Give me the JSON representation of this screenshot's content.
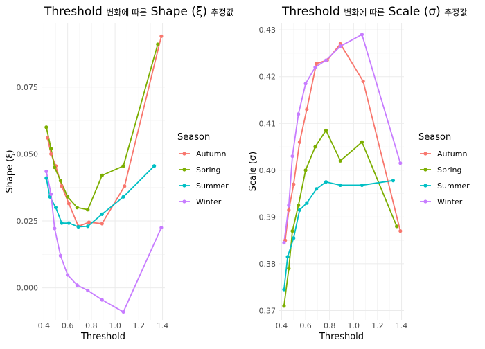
{
  "colors": {
    "Autumn": "#F8766D",
    "Spring": "#7CAE00",
    "Summer": "#00BFC4",
    "Winter": "#C77CFF",
    "grid": "#ebebeb"
  },
  "chart_data": [
    {
      "type": "line",
      "title": "Threshold 변화에 따른 Shape (ξ) 추정값",
      "title_parts": [
        "Threshold ",
        "변화에 따른",
        " Shape (ξ) ",
        "추정값"
      ],
      "xlabel": "Threshold",
      "ylabel": "Shape (ξ)",
      "xlim": [
        0.38,
        1.42
      ],
      "ylim": [
        -0.012,
        0.099
      ],
      "x_ticks": [
        0.4,
        0.6,
        0.8,
        1.0,
        1.2,
        1.4
      ],
      "x_tick_labels": [
        "0.4",
        "0.6",
        "0.8",
        "1.0",
        "1.2",
        "1.4"
      ],
      "y_ticks": [
        0.0,
        0.025,
        0.05,
        0.075
      ],
      "y_tick_labels": [
        "0.000",
        "0.025",
        "0.050",
        "0.075"
      ],
      "legend": {
        "title": "Season",
        "entries": [
          "Autumn",
          "Spring",
          "Summer",
          "Winter"
        ],
        "position": "right"
      },
      "grid": true,
      "series": [
        {
          "name": "Autumn",
          "x": [
            0.43,
            0.46,
            0.5,
            0.55,
            0.61,
            0.69,
            0.78,
            0.89,
            1.08,
            1.39
          ],
          "y": [
            0.056,
            0.05,
            0.0455,
            0.038,
            0.0315,
            0.023,
            0.0245,
            0.024,
            0.038,
            0.094
          ]
        },
        {
          "name": "Spring",
          "x": [
            0.42,
            0.46,
            0.49,
            0.54,
            0.6,
            0.68,
            0.77,
            0.89,
            1.07,
            1.36
          ],
          "y": [
            0.06,
            0.052,
            0.045,
            0.04,
            0.034,
            0.03,
            0.0292,
            0.042,
            0.0455,
            0.091
          ]
        },
        {
          "name": "Summer",
          "x": [
            0.42,
            0.45,
            0.5,
            0.55,
            0.61,
            0.69,
            0.77,
            0.89,
            1.07,
            1.33
          ],
          "y": [
            0.041,
            0.034,
            0.03,
            0.0242,
            0.0242,
            0.0228,
            0.023,
            0.0275,
            0.034,
            0.0455
          ]
        },
        {
          "name": "Winter",
          "x": [
            0.42,
            0.46,
            0.49,
            0.54,
            0.6,
            0.68,
            0.77,
            0.89,
            1.07,
            1.39
          ],
          "y": [
            0.0435,
            0.035,
            0.0222,
            0.012,
            0.0048,
            0.001,
            -0.001,
            -0.0045,
            -0.009,
            0.0225
          ]
        }
      ]
    },
    {
      "type": "line",
      "title": "Threshold 변화에 따른 Scale (σ) 추정값",
      "title_parts": [
        "Threshold ",
        "변화에 따른",
        " Scale (σ) ",
        "추정값"
      ],
      "xlabel": "Threshold",
      "ylabel": "Scale (σ)",
      "xlim": [
        0.38,
        1.42
      ],
      "ylim": [
        0.368,
        0.4315
      ],
      "x_ticks": [
        0.4,
        0.6,
        0.8,
        1.0,
        1.2,
        1.4
      ],
      "x_tick_labels": [
        "0.4",
        "0.6",
        "0.8",
        "1.0",
        "1.2",
        "1.4"
      ],
      "y_ticks": [
        0.37,
        0.38,
        0.39,
        0.4,
        0.41,
        0.42,
        0.43
      ],
      "y_tick_labels": [
        "0.37",
        "0.38",
        "0.39",
        "0.40",
        "0.41",
        "0.42",
        "0.43"
      ],
      "legend": {
        "title": "Season",
        "entries": [
          "Autumn",
          "Spring",
          "Summer",
          "Winter"
        ],
        "position": "right"
      },
      "grid": true,
      "series": [
        {
          "name": "Autumn",
          "x": [
            0.43,
            0.46,
            0.5,
            0.55,
            0.61,
            0.69,
            0.78,
            0.89,
            1.08,
            1.39
          ],
          "y": [
            0.385,
            0.3915,
            0.397,
            0.406,
            0.413,
            0.4228,
            0.4235,
            0.427,
            0.419,
            0.387
          ]
        },
        {
          "name": "Spring",
          "x": [
            0.42,
            0.46,
            0.49,
            0.54,
            0.6,
            0.68,
            0.77,
            0.89,
            1.07,
            1.36
          ],
          "y": [
            0.371,
            0.379,
            0.387,
            0.3925,
            0.4,
            0.405,
            0.4085,
            0.402,
            0.406,
            0.388
          ]
        },
        {
          "name": "Summer",
          "x": [
            0.42,
            0.45,
            0.5,
            0.55,
            0.61,
            0.69,
            0.77,
            0.89,
            1.07,
            1.33
          ],
          "y": [
            0.3745,
            0.3815,
            0.3855,
            0.3915,
            0.393,
            0.396,
            0.3975,
            0.3968,
            0.3968,
            0.3978
          ]
        },
        {
          "name": "Winter",
          "x": [
            0.42,
            0.46,
            0.49,
            0.54,
            0.6,
            0.68,
            0.77,
            0.89,
            1.07,
            1.39
          ],
          "y": [
            0.3845,
            0.3925,
            0.403,
            0.412,
            0.4185,
            0.422,
            0.4235,
            0.4265,
            0.429,
            0.4015
          ]
        }
      ]
    }
  ]
}
